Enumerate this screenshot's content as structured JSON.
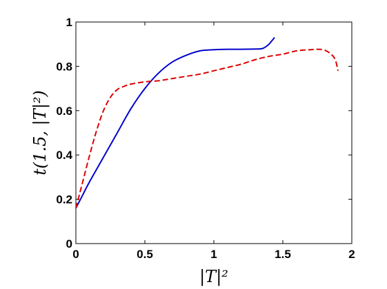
{
  "chart_data": {
    "type": "line",
    "xlabel": "|T|²",
    "ylabel": "t(1.5, |T|²)",
    "xlim": [
      0,
      2
    ],
    "ylim": [
      0,
      1
    ],
    "xticks": [
      "0",
      "0.5",
      "1",
      "1.5",
      "2"
    ],
    "xtick_values": [
      0,
      0.5,
      1,
      1.5,
      2
    ],
    "yticks": [
      "0",
      "0.2",
      "0.4",
      "0.6",
      "0.8",
      "1"
    ],
    "ytick_values": [
      0,
      0.2,
      0.4,
      0.6,
      0.8,
      1
    ],
    "grid": false,
    "series": [
      {
        "color": "#0000cc",
        "style": "solid",
        "x": [
          0,
          0.05,
          0.1,
          0.2,
          0.3,
          0.4,
          0.5,
          0.6,
          0.7,
          0.8,
          0.9,
          1.0,
          1.1,
          1.2,
          1.3,
          1.35,
          1.38,
          1.4,
          1.42,
          1.44
        ],
        "y": [
          0.16,
          0.22,
          0.28,
          0.39,
          0.5,
          0.61,
          0.7,
          0.77,
          0.82,
          0.85,
          0.87,
          0.875,
          0.877,
          0.877,
          0.878,
          0.88,
          0.89,
          0.9,
          0.915,
          0.93
        ]
      },
      {
        "color": "#dd0000",
        "style": "dashed",
        "x": [
          0,
          0.05,
          0.1,
          0.15,
          0.2,
          0.25,
          0.3,
          0.35,
          0.4,
          0.5,
          0.6,
          0.7,
          0.8,
          0.9,
          1.0,
          1.1,
          1.2,
          1.3,
          1.4,
          1.5,
          1.6,
          1.7,
          1.75,
          1.8,
          1.85,
          1.88,
          1.9
        ],
        "y": [
          0.16,
          0.28,
          0.4,
          0.51,
          0.6,
          0.66,
          0.695,
          0.71,
          0.72,
          0.73,
          0.735,
          0.745,
          0.755,
          0.765,
          0.78,
          0.795,
          0.81,
          0.83,
          0.845,
          0.855,
          0.87,
          0.875,
          0.877,
          0.874,
          0.855,
          0.83,
          0.78
        ]
      }
    ]
  }
}
